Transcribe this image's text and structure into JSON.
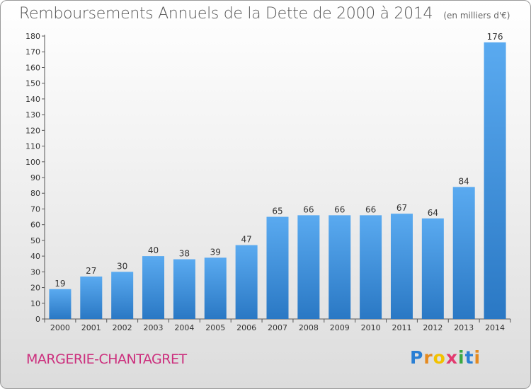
{
  "chart_data": {
    "type": "bar",
    "title": "Remboursements Annuels de la Dette de 2000 à 2014",
    "subtitle": "(en milliers d'€)",
    "categories": [
      "2000",
      "2001",
      "2002",
      "2003",
      "2004",
      "2005",
      "2006",
      "2007",
      "2008",
      "2009",
      "2010",
      "2011",
      "2012",
      "2013",
      "2014"
    ],
    "values": [
      19,
      27,
      30,
      40,
      38,
      39,
      47,
      65,
      66,
      66,
      66,
      67,
      64,
      84,
      176
    ],
    "ylim": [
      0,
      180
    ],
    "yticks": [
      0,
      10,
      20,
      30,
      40,
      50,
      60,
      70,
      80,
      90,
      100,
      110,
      120,
      130,
      140,
      150,
      160,
      170,
      180
    ],
    "xlabel": "",
    "ylabel": "",
    "grid": false,
    "bar_color": "#3d8fd8"
  },
  "footer": {
    "town": "MARGERIE-CHANTAGRET",
    "logo_letters": [
      "P",
      "r",
      "o",
      "x",
      "i",
      "t",
      "i"
    ],
    "logo_colors": [
      "#2a7fd4",
      "#e58a1f",
      "#f2c200",
      "#e23a6f",
      "#3aa842",
      "#2a7fd4",
      "#e58a1f"
    ]
  }
}
